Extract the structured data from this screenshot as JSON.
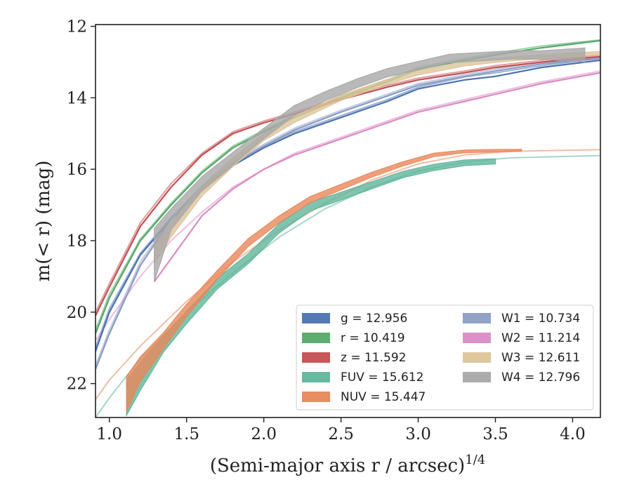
{
  "chart_data": {
    "type": "line",
    "xlabel": "(Semi-major axis r / arcsec)",
    "xlabel_sup": "1/4",
    "ylabel": "m(< r) (mag)",
    "xlim": [
      0.91,
      4.18
    ],
    "ylim": [
      22.95,
      11.95
    ],
    "y_inverted": true,
    "xticks": [
      1.0,
      1.5,
      2.0,
      2.5,
      3.0,
      3.5,
      4.0
    ],
    "xtick_labels": [
      "1.0",
      "1.5",
      "2.0",
      "2.5",
      "3.0",
      "3.5",
      "4.0"
    ],
    "yticks": [
      12,
      14,
      16,
      18,
      20,
      22
    ],
    "ytick_labels": [
      "12",
      "14",
      "16",
      "18",
      "20",
      "22"
    ],
    "grid": false,
    "legend_position": "lower-right",
    "legend_columns": 2,
    "series": [
      {
        "name": "g = 12.956",
        "band": "g",
        "color": "#4c72b0",
        "x": [
          0.91,
          1.0,
          1.2,
          1.4,
          1.6,
          1.8,
          2.0,
          2.2,
          2.5,
          2.8,
          3.0,
          3.3,
          3.5,
          3.8,
          4.18
        ],
        "y": [
          21.1,
          20.0,
          18.4,
          17.4,
          16.6,
          15.9,
          15.4,
          15.0,
          14.55,
          14.1,
          13.75,
          13.5,
          13.4,
          13.15,
          12.95
        ],
        "model_y": [
          21.0,
          19.9,
          18.35,
          17.35,
          16.55,
          15.85,
          15.35,
          14.95,
          14.5,
          14.05,
          13.7,
          13.42,
          13.3,
          13.1,
          12.9
        ]
      },
      {
        "name": "r = 10.419",
        "band": "r",
        "color": "#55a868",
        "x": [
          0.91,
          1.0,
          1.2,
          1.4,
          1.6,
          1.8,
          2.0,
          2.2,
          2.5,
          2.8,
          3.0,
          3.3,
          3.5,
          3.8,
          4.18
        ],
        "y": [
          20.6,
          19.6,
          18.0,
          17.0,
          16.1,
          15.4,
          14.95,
          14.55,
          14.0,
          13.55,
          13.2,
          12.95,
          12.8,
          12.6,
          12.4
        ],
        "model_y": [
          20.5,
          19.5,
          17.95,
          16.95,
          16.05,
          15.35,
          14.9,
          14.5,
          13.95,
          13.5,
          13.15,
          12.9,
          12.75,
          12.55,
          12.38
        ]
      },
      {
        "name": "z = 11.592",
        "band": "z",
        "color": "#c44e52",
        "x": [
          0.91,
          1.0,
          1.2,
          1.4,
          1.6,
          1.8,
          2.0,
          2.2,
          2.5,
          2.8,
          3.0,
          3.3,
          3.5,
          3.8,
          4.18
        ],
        "y": [
          20.1,
          19.3,
          17.6,
          16.5,
          15.6,
          15.0,
          14.7,
          14.45,
          14.05,
          13.7,
          13.5,
          13.3,
          13.15,
          13.0,
          12.85
        ],
        "model_y": [
          20.0,
          19.2,
          17.5,
          16.4,
          15.55,
          14.95,
          14.65,
          14.4,
          14.0,
          13.65,
          13.45,
          13.25,
          13.1,
          12.95,
          12.82
        ]
      },
      {
        "name": "FUV = 15.612",
        "band": "FUV",
        "color": "#5fb59a",
        "x": [
          1.11,
          1.2,
          1.35,
          1.5,
          1.7,
          1.9,
          2.1,
          2.3,
          2.5,
          2.7,
          2.9,
          3.1,
          3.3,
          3.5
        ],
        "y": [
          22.4,
          21.8,
          20.9,
          20.15,
          19.2,
          18.5,
          17.65,
          17.05,
          16.75,
          16.45,
          16.15,
          15.95,
          15.82,
          15.78
        ],
        "band_width": [
          1.0,
          0.8,
          0.45,
          0.35,
          0.3,
          0.28,
          0.26,
          0.24,
          0.22,
          0.2,
          0.18,
          0.18,
          0.16,
          0.15
        ],
        "model_x": [
          0.91,
          1.0,
          1.2,
          1.5,
          1.8,
          2.1,
          2.4,
          2.7,
          3.0,
          3.3,
          3.6,
          4.18
        ],
        "model_y": [
          22.95,
          22.4,
          21.3,
          20.0,
          18.9,
          17.9,
          17.1,
          16.5,
          16.05,
          15.8,
          15.68,
          15.62
        ]
      },
      {
        "name": "NUV = 15.447",
        "band": "NUV",
        "color": "#e8875a",
        "x": [
          1.11,
          1.2,
          1.35,
          1.5,
          1.7,
          1.9,
          2.1,
          2.3,
          2.5,
          2.7,
          2.9,
          3.1,
          3.3,
          3.5,
          3.67
        ],
        "y": [
          22.3,
          21.6,
          20.8,
          19.95,
          18.95,
          18.05,
          17.4,
          16.85,
          16.5,
          16.15,
          15.85,
          15.6,
          15.5,
          15.48,
          15.47
        ],
        "band_width": [
          1.0,
          0.7,
          0.45,
          0.35,
          0.25,
          0.22,
          0.2,
          0.18,
          0.16,
          0.14,
          0.12,
          0.1,
          0.08,
          0.07,
          0.06
        ],
        "model_x": [
          0.91,
          1.0,
          1.2,
          1.5,
          1.8,
          2.1,
          2.4,
          2.7,
          3.0,
          3.3,
          3.6,
          4.18
        ],
        "model_y": [
          22.45,
          21.9,
          20.95,
          19.7,
          18.6,
          17.7,
          16.95,
          16.3,
          15.85,
          15.6,
          15.5,
          15.45
        ]
      },
      {
        "name": "W1 = 10.734",
        "band": "W1",
        "color": "#8c9dc4",
        "x": [
          0.91,
          1.0,
          1.2,
          1.4,
          1.6,
          1.8,
          2.0,
          2.2,
          2.5,
          2.8,
          3.0,
          3.3,
          3.5,
          3.8,
          4.18
        ],
        "y": [
          21.6,
          20.6,
          18.7,
          17.4,
          16.5,
          15.85,
          15.35,
          14.9,
          14.4,
          13.95,
          13.65,
          13.4,
          13.25,
          13.05,
          12.9
        ],
        "model_y": [
          21.5,
          20.5,
          18.6,
          17.35,
          16.45,
          15.8,
          15.3,
          14.85,
          14.35,
          13.9,
          13.6,
          13.35,
          13.2,
          13.0,
          12.88
        ]
      },
      {
        "name": "W2 = 11.214",
        "band": "W2",
        "color": "#da8bc3",
        "x": [
          1.29,
          1.4,
          1.6,
          1.8,
          2.0,
          2.2,
          2.5,
          2.8,
          3.0,
          3.3,
          3.5,
          3.8,
          4.18
        ],
        "y": [
          19.15,
          18.5,
          17.3,
          16.55,
          16.0,
          15.6,
          15.15,
          14.7,
          14.4,
          14.1,
          13.9,
          13.6,
          13.3
        ],
        "model_x": [
          0.91,
          1.0,
          1.2,
          1.4,
          1.6,
          1.8,
          2.0,
          2.2,
          2.5,
          2.8,
          3.0,
          3.3,
          3.5,
          3.8,
          4.18
        ],
        "model_y": [
          20.8,
          20.2,
          19.0,
          18.0,
          17.2,
          16.5,
          16.0,
          15.55,
          15.1,
          14.65,
          14.35,
          14.05,
          13.85,
          13.55,
          13.25
        ]
      },
      {
        "name": "W3 = 12.611",
        "band": "W3",
        "color": "#ddc49a",
        "x": [
          1.29,
          1.4,
          1.6,
          1.8,
          2.0,
          2.2,
          2.5,
          2.8,
          3.0,
          3.3,
          3.5,
          3.8,
          4.18
        ],
        "y": [
          18.4,
          17.7,
          16.6,
          15.8,
          15.1,
          14.6,
          14.0,
          13.55,
          13.3,
          13.05,
          12.95,
          12.85,
          12.75
        ],
        "band_width": [
          0.5,
          0.4,
          0.3,
          0.25,
          0.2,
          0.18,
          0.15,
          0.14,
          0.13,
          0.12,
          0.12,
          0.11,
          0.1
        ]
      },
      {
        "name": "W4 = 12.796",
        "band": "W4",
        "color": "#a8a8a8",
        "x": [
          1.29,
          1.4,
          1.6,
          1.8,
          2.0,
          2.2,
          2.4,
          2.6,
          2.8,
          3.0,
          3.2,
          3.4,
          3.6,
          3.8,
          4.08
        ],
        "y": [
          18.4,
          17.4,
          16.4,
          15.7,
          15.0,
          14.35,
          13.95,
          13.6,
          13.3,
          13.1,
          12.9,
          12.85,
          12.8,
          12.8,
          12.8
        ],
        "band_width": [
          1.5,
          0.6,
          0.4,
          0.35,
          0.3,
          0.28,
          0.26,
          0.25,
          0.24,
          0.24,
          0.24,
          0.24,
          0.24,
          0.24,
          0.4
        ]
      }
    ]
  }
}
